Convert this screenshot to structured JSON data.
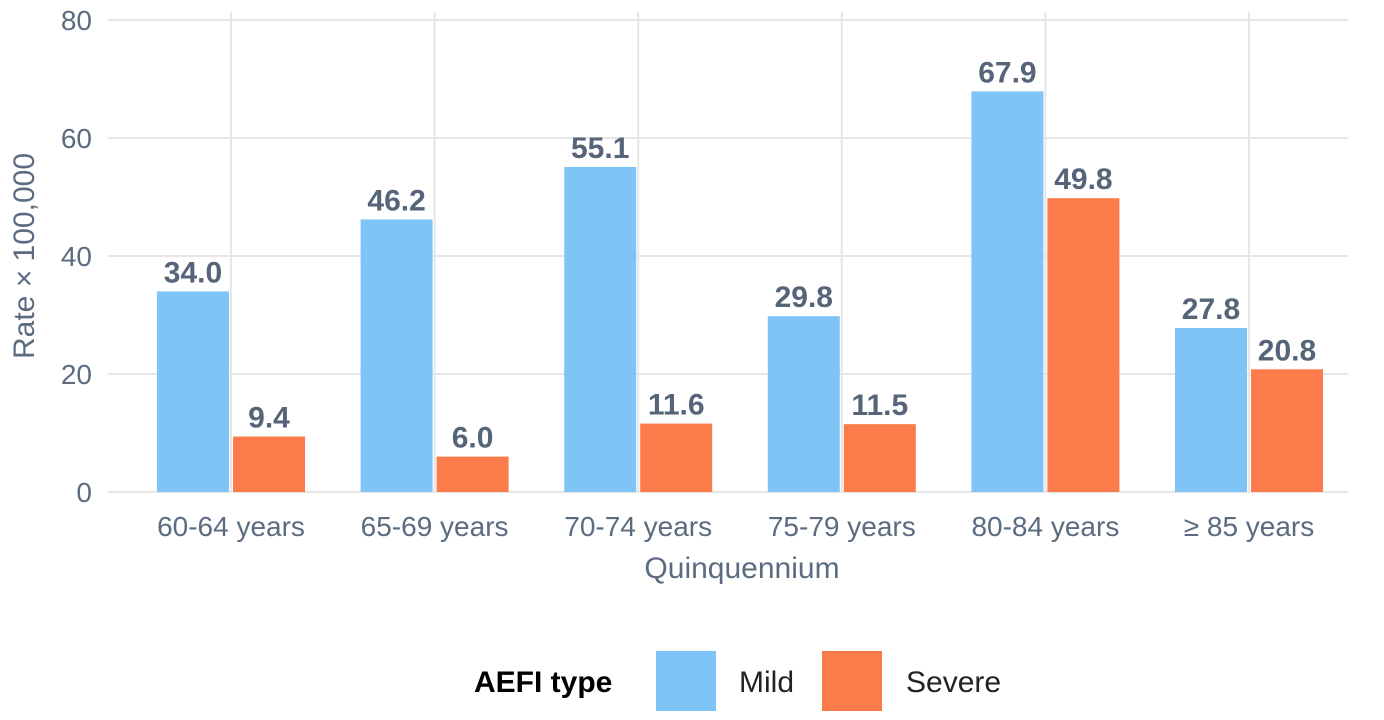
{
  "chart_data": {
    "type": "bar",
    "title": "",
    "xlabel": "Quinquennium",
    "ylabel": "Rate × 100,000",
    "categories": [
      "60-64 years",
      "65-69 years",
      "70-74 years",
      "75-79 years",
      "80-84 years",
      "≥ 85 years"
    ],
    "series": [
      {
        "name": "Mild",
        "values": [
          34.0,
          46.2,
          55.1,
          29.8,
          67.9,
          27.8
        ],
        "labels": [
          "34.0",
          "46.2",
          "55.1",
          "29.8",
          "67.9",
          "27.8"
        ],
        "color": "#7fc4f6"
      },
      {
        "name": "Severe",
        "values": [
          9.4,
          6.0,
          11.6,
          11.5,
          49.8,
          20.8
        ],
        "labels": [
          "9.4",
          "6.0",
          "11.6",
          "11.5",
          "49.8",
          "20.8"
        ],
        "color": "#fb7b4b"
      }
    ],
    "ylim": [
      0,
      80
    ],
    "yticks": [
      0,
      20,
      40,
      60,
      80
    ],
    "grid": true,
    "legend": {
      "title": "AEFI type",
      "position": "bottom"
    }
  }
}
